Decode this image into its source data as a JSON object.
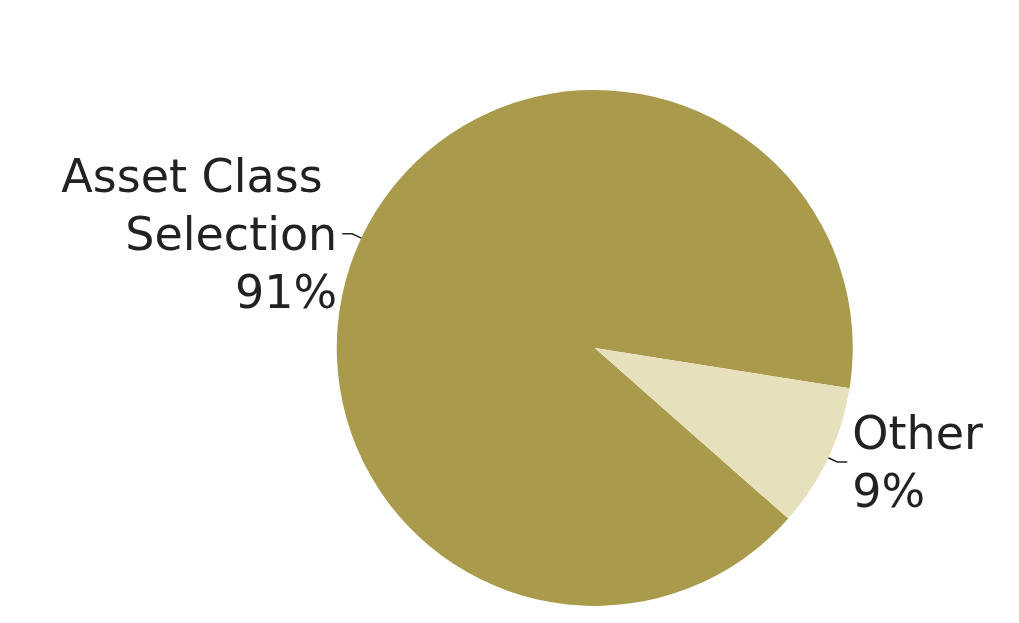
{
  "chart_data": {
    "type": "pie",
    "categories": [
      "Asset Class Selection",
      "Other"
    ],
    "values": [
      91,
      9
    ],
    "colors": [
      "#a99a4c",
      "#e6e0bd"
    ],
    "value_labels": [
      "91%",
      "9%"
    ],
    "legend": false
  }
}
